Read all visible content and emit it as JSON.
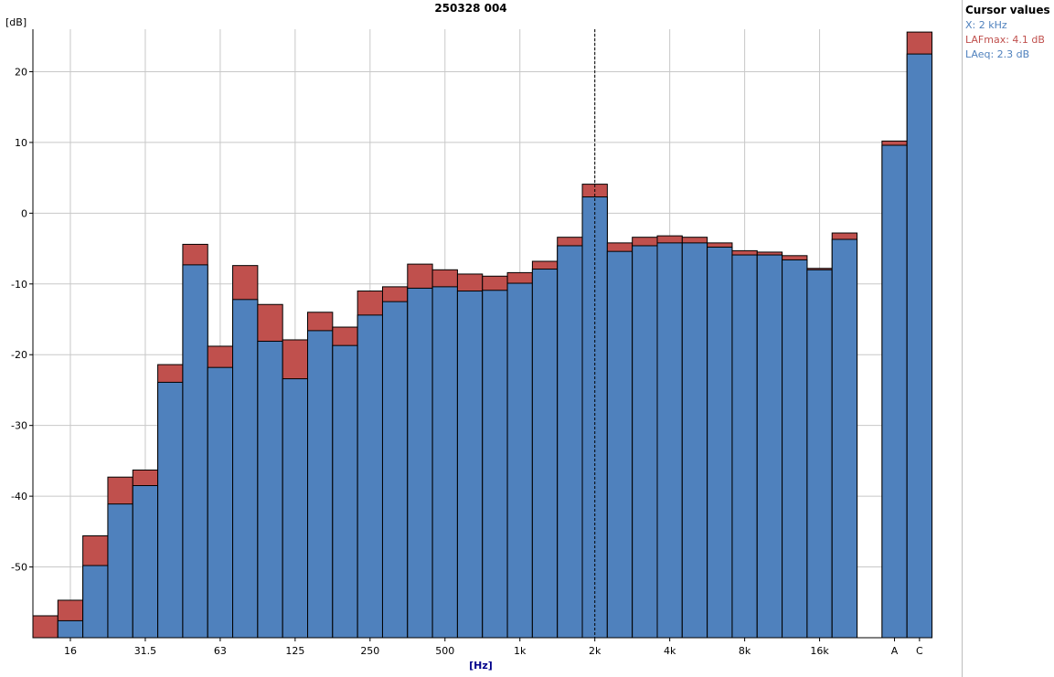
{
  "chart_title": "250328 004",
  "y_unit": "[dB]",
  "x_unit": "[Hz]",
  "cursor_panel": {
    "title": "Cursor values",
    "x_line": "X: 2 kHz",
    "lafmax_line": "LAFmax: 4.1 dB",
    "laeq_line": "LAeq: 2.3 dB"
  },
  "colors": {
    "laeq": "#4f81bd",
    "lafmax": "#c0504d",
    "x_text": "#4f81bd",
    "lafmax_text": "#c0504d",
    "laeq_text": "#4f81bd",
    "grid": "#c8c8c8",
    "x_unit": "#00008b"
  },
  "chart_data": {
    "type": "bar",
    "title": "250328 004",
    "xlabel": "[Hz]",
    "ylabel": "[dB]",
    "ylim": [
      -60,
      26
    ],
    "y_ticks": [
      -50,
      -40,
      -30,
      -20,
      -10,
      0,
      10,
      20
    ],
    "grid": true,
    "cursor_at": "2k",
    "categories": [
      "12.5",
      "16",
      "20",
      "25",
      "31.5",
      "40",
      "50",
      "63",
      "80",
      "100",
      "125",
      "160",
      "200",
      "250",
      "315",
      "400",
      "500",
      "630",
      "800",
      "1k",
      "1.25k",
      "1.6k",
      "2k",
      "2.5k",
      "3.15k",
      "4k",
      "5k",
      "6.3k",
      "8k",
      "10k",
      "12.5k",
      "16k",
      "20k",
      "A",
      "C"
    ],
    "x_tick_labels": [
      "16",
      "31.5",
      "63",
      "125",
      "250",
      "500",
      "1k",
      "2k",
      "4k",
      "8k",
      "16k",
      "A",
      "C"
    ],
    "series": [
      {
        "name": "LAFmax",
        "values": [
          -56.9,
          -54.7,
          -45.6,
          -37.3,
          -36.3,
          -21.4,
          -4.4,
          -18.8,
          -7.4,
          -12.9,
          -17.9,
          -14.0,
          -16.1,
          -11.0,
          -10.4,
          -7.2,
          -8.0,
          -8.6,
          -8.9,
          -8.4,
          -6.8,
          -3.4,
          4.1,
          -4.2,
          -3.4,
          -3.2,
          -3.4,
          -4.2,
          -5.3,
          -5.5,
          -6.0,
          -7.8,
          -2.8,
          10.2,
          25.6
        ]
      },
      {
        "name": "LAeq",
        "values": [
          null,
          -57.6,
          -49.8,
          -41.1,
          -38.5,
          -23.9,
          -7.3,
          -21.8,
          -12.2,
          -18.1,
          -23.4,
          -16.6,
          -18.7,
          -14.4,
          -12.5,
          -10.6,
          -10.4,
          -11.0,
          -10.9,
          -9.9,
          -7.9,
          -4.6,
          2.3,
          -5.4,
          -4.6,
          -4.2,
          -4.2,
          -4.8,
          -5.9,
          -5.9,
          -6.6,
          -8.0,
          -3.7,
          9.6,
          22.5
        ]
      }
    ]
  }
}
